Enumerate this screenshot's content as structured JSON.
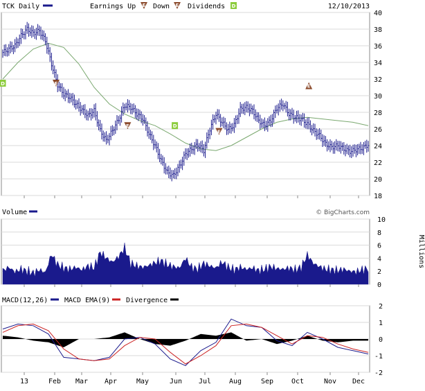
{
  "chart_data": [
    {
      "type": "line",
      "panel": "price",
      "title": "TCK Daily",
      "date": "12/10/2013",
      "legend": [
        {
          "label": "Earnings Up",
          "glyph": "E"
        },
        {
          "label": "Down",
          "glyph": "E"
        },
        {
          "label": "Dividends",
          "glyph": "D"
        }
      ],
      "ylim": [
        18,
        40
      ],
      "yticks": [
        "18",
        "20",
        "22",
        "24",
        "26",
        "28",
        "30",
        "32",
        "34",
        "36",
        "38",
        "40"
      ],
      "xticks": [
        "13",
        "Feb",
        "Mar",
        "Apr",
        "May",
        "Jun",
        "Jul",
        "Aug",
        "Sep",
        "Oct",
        "Nov",
        "Dec"
      ],
      "series": [
        {
          "name": "TCK Daily",
          "color": "#1a1a8c",
          "x": [
            0,
            4,
            8,
            12,
            16,
            20,
            24,
            28,
            32,
            36,
            40,
            44,
            48,
            52,
            56,
            60,
            64,
            68,
            72,
            76,
            80,
            84,
            88,
            92,
            96,
            100,
            104,
            108,
            112,
            116,
            120,
            124,
            128,
            132,
            136,
            140,
            144,
            148,
            152,
            156,
            160,
            164,
            168,
            172,
            176,
            180,
            184,
            188,
            192,
            196,
            200,
            204,
            208,
            212,
            216,
            220,
            224,
            228,
            232,
            236,
            240
          ],
          "values": [
            35.2,
            35.6,
            36.0,
            37.2,
            38.0,
            37.5,
            37.8,
            36.6,
            33.8,
            31.3,
            30.2,
            29.8,
            29.0,
            28.3,
            27.6,
            28.2,
            25.8,
            24.6,
            25.8,
            27.1,
            28.8,
            28.6,
            27.8,
            27.2,
            25.4,
            24.0,
            22.2,
            20.8,
            20.4,
            21.5,
            23.0,
            23.6,
            24.1,
            23.4,
            26.0,
            27.8,
            26.8,
            25.9,
            26.5,
            28.4,
            28.6,
            28.2,
            27.0,
            26.4,
            27.0,
            28.5,
            29.0,
            27.8,
            27.4,
            27.2,
            26.6,
            25.8,
            25.2,
            24.2,
            23.8,
            24.0,
            23.6,
            23.3,
            23.5,
            23.7,
            24.1
          ]
        },
        {
          "name": "MA",
          "color": "#7aa86f",
          "x": [
            0,
            10,
            20,
            30,
            40,
            50,
            60,
            70,
            80,
            90,
            100,
            110,
            120,
            130,
            140,
            150,
            160,
            170,
            180,
            190,
            200,
            210,
            220,
            230,
            240
          ],
          "values": [
            32.0,
            34.0,
            35.6,
            36.3,
            35.8,
            33.8,
            31.0,
            29.0,
            27.8,
            27.0,
            26.4,
            25.4,
            24.3,
            23.6,
            23.4,
            24.0,
            25.0,
            26.0,
            26.8,
            27.2,
            27.4,
            27.2,
            27.0,
            26.8,
            26.4
          ]
        }
      ],
      "events": [
        {
          "kind": "dividend",
          "glyph": "D",
          "x": 0,
          "y": 31.5
        },
        {
          "kind": "earnings-down",
          "glyph": "E",
          "x": 35,
          "y": 31.5
        },
        {
          "kind": "earnings-down",
          "glyph": "E",
          "x": 82,
          "y": 26.4
        },
        {
          "kind": "dividend",
          "glyph": "D",
          "x": 113,
          "y": 26.4
        },
        {
          "kind": "earnings-down",
          "glyph": "E",
          "x": 142,
          "y": 25.7
        },
        {
          "kind": "earnings-up",
          "glyph": "E",
          "x": 201,
          "y": 31.2
        }
      ]
    },
    {
      "type": "area",
      "panel": "volume",
      "title": "Volume",
      "credit": "© BigCharts.com",
      "ylabel": "Millions",
      "ylim": [
        0,
        10
      ],
      "yticks": [
        "0",
        "2",
        "4",
        "6",
        "8",
        "10"
      ],
      "series": [
        {
          "name": "Volume",
          "color": "#1a1a8c",
          "x": [
            0,
            4,
            8,
            12,
            16,
            20,
            24,
            28,
            32,
            36,
            40,
            44,
            48,
            52,
            56,
            60,
            64,
            68,
            72,
            76,
            80,
            84,
            88,
            92,
            96,
            100,
            104,
            108,
            112,
            116,
            120,
            124,
            128,
            132,
            136,
            140,
            144,
            148,
            152,
            156,
            160,
            164,
            168,
            172,
            176,
            180,
            184,
            188,
            192,
            196,
            200,
            204,
            208,
            212,
            216,
            220,
            224,
            228,
            232,
            236,
            240
          ],
          "values": [
            2.1,
            2.6,
            1.9,
            2.3,
            2.0,
            1.7,
            2.2,
            1.8,
            4.6,
            3.0,
            2.5,
            2.3,
            2.6,
            2.2,
            2.8,
            2.5,
            4.9,
            4.0,
            3.4,
            4.2,
            5.6,
            3.2,
            2.8,
            2.6,
            2.9,
            3.3,
            3.6,
            3.0,
            2.7,
            2.5,
            4.0,
            2.6,
            2.3,
            3.2,
            2.8,
            2.5,
            3.4,
            2.6,
            2.2,
            2.6,
            2.3,
            2.5,
            2.1,
            2.3,
            2.7,
            2.4,
            2.3,
            2.5,
            2.2,
            2.6,
            4.5,
            3.2,
            2.7,
            2.3,
            2.2,
            2.1,
            2.3,
            2.0,
            1.9,
            2.2,
            2.4
          ]
        }
      ]
    },
    {
      "type": "line",
      "panel": "macd",
      "title": "MACD(12,26)",
      "legend": [
        {
          "label": "MACD(12,26)",
          "color": "#1a1a8c"
        },
        {
          "label": "MACD EMA(9)",
          "color": "#cc2222"
        },
        {
          "label": "Divergence",
          "color": "#000000"
        }
      ],
      "ylim": [
        -2,
        2
      ],
      "yticks": [
        "-2",
        "-1",
        "0",
        "1",
        "2"
      ],
      "series": [
        {
          "name": "MACD(12,26)",
          "color": "#1a1a8c",
          "x": [
            0,
            10,
            20,
            30,
            40,
            50,
            60,
            70,
            80,
            90,
            100,
            110,
            120,
            130,
            140,
            150,
            160,
            170,
            180,
            190,
            200,
            210,
            220,
            230,
            240
          ],
          "values": [
            0.6,
            0.9,
            0.8,
            0.3,
            -1.1,
            -1.2,
            -1.3,
            -1.1,
            0.0,
            0.1,
            -0.3,
            -1.2,
            -1.6,
            -0.7,
            -0.2,
            1.2,
            0.8,
            0.7,
            -0.1,
            -0.4,
            0.4,
            0.0,
            -0.5,
            -0.7,
            -0.9
          ]
        },
        {
          "name": "MACD EMA(9)",
          "color": "#cc2222",
          "x": [
            0,
            10,
            20,
            30,
            40,
            50,
            60,
            70,
            80,
            90,
            100,
            110,
            120,
            130,
            140,
            150,
            160,
            170,
            180,
            190,
            200,
            210,
            220,
            230,
            240
          ],
          "values": [
            0.4,
            0.8,
            0.9,
            0.5,
            -0.6,
            -1.2,
            -1.3,
            -1.2,
            -0.4,
            0.1,
            0.0,
            -0.8,
            -1.5,
            -1.0,
            -0.4,
            0.8,
            0.9,
            0.7,
            0.2,
            -0.3,
            0.2,
            0.1,
            -0.3,
            -0.6,
            -0.8
          ]
        },
        {
          "name": "Divergence",
          "color": "#000000",
          "x": [
            0,
            10,
            20,
            30,
            40,
            50,
            60,
            70,
            80,
            90,
            100,
            110,
            120,
            130,
            140,
            150,
            160,
            170,
            180,
            190,
            200,
            210,
            220,
            230,
            240
          ],
          "values": [
            0.2,
            0.1,
            -0.1,
            -0.2,
            -0.5,
            0.0,
            0.0,
            0.1,
            0.4,
            0.0,
            -0.3,
            -0.4,
            -0.1,
            0.3,
            0.2,
            0.4,
            -0.1,
            0.0,
            -0.3,
            -0.1,
            0.2,
            -0.1,
            -0.2,
            -0.1,
            -0.1
          ]
        }
      ]
    }
  ]
}
